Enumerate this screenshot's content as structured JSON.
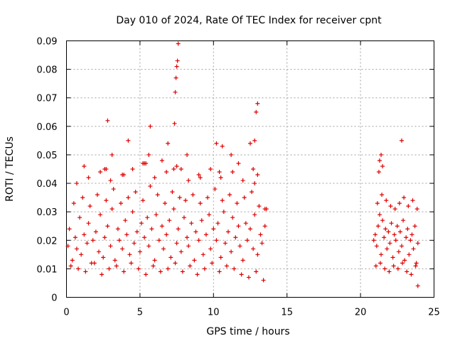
{
  "colors": {
    "series": "#e00000",
    "grid": "#a0a0a0",
    "axis": "#000000",
    "background": "#ffffff"
  },
  "chart_data": {
    "type": "scatter",
    "title": "Day 010 of 2024, Rate Of TEC Index for receiver cpnt",
    "xlabel": "GPS time / hours",
    "ylabel": "ROTI / TECUs",
    "xlim": [
      0,
      25
    ],
    "ylim": [
      0,
      0.09
    ],
    "xticks": [
      "0",
      "5",
      "10",
      "15",
      "20",
      "25"
    ],
    "yticks": [
      "0",
      "0.01",
      "0.02",
      "0.03",
      "0.04",
      "0.05",
      "0.06",
      "0.07",
      "0.08",
      "0.09"
    ],
    "grid": true,
    "marker": "+",
    "series": [
      {
        "name": "ROTI",
        "notes": "dense cloud of values approx 0.01–0.035 TECU/s from 0 to 13.7 h and from 20.8 to 24 h; data gap 13.7–20.8 h",
        "x": [
          0.1,
          0.2,
          0.4,
          0.6,
          0.7,
          0.9,
          1.0,
          1.2,
          1.4,
          1.5,
          1.7,
          1.8,
          2.0,
          2.2,
          2.3,
          2.5,
          2.6,
          2.8,
          3.0,
          3.1,
          3.3,
          3.5,
          3.6,
          3.8,
          4.0,
          4.1,
          4.3,
          4.5,
          4.6,
          4.8,
          5.0,
          5.1,
          5.3,
          5.5,
          5.6,
          5.8,
          6.0,
          6.1,
          6.3,
          6.5,
          6.6,
          6.8,
          7.0,
          7.1,
          7.3,
          7.5,
          7.6,
          7.8,
          8.0,
          8.2,
          8.3,
          8.5,
          8.7,
          8.8,
          9.0,
          9.2,
          9.3,
          9.5,
          9.7,
          9.8,
          10.0,
          10.2,
          10.3,
          10.5,
          10.7,
          10.8,
          11.0,
          11.2,
          11.3,
          11.5,
          11.7,
          11.8,
          12.0,
          12.2,
          12.3,
          12.5,
          12.7,
          12.8,
          13.0,
          13.2,
          13.3,
          13.5,
          0.3,
          0.8,
          1.3,
          1.9,
          2.4,
          2.9,
          3.4,
          3.9,
          4.4,
          4.9,
          5.4,
          5.9,
          6.4,
          6.9,
          7.4,
          7.9,
          8.4,
          8.9,
          9.4,
          9.9,
          10.4,
          10.9,
          11.4,
          11.9,
          12.4,
          12.9,
          13.4,
          0.5,
          1.1,
          1.6,
          2.1,
          2.7,
          3.2,
          3.7,
          4.2,
          4.7,
          5.2,
          5.7,
          6.2,
          6.7,
          7.2,
          7.7,
          8.1,
          8.6,
          9.1,
          9.6,
          10.1,
          10.6,
          11.1,
          11.6,
          12.1,
          12.6,
          13.1,
          13.6,
          0.7,
          1.5,
          2.3,
          3.0,
          3.8,
          4.5,
          5.3,
          6.0,
          6.8,
          7.5,
          8.3,
          9.0,
          9.8,
          10.5,
          11.3,
          12.0,
          12.8,
          13.5,
          1.2,
          2.6,
          3.9,
          5.2,
          6.5,
          7.8,
          9.1,
          10.4,
          11.7,
          13.0,
          2.7,
          2.8,
          3.1,
          4.2,
          5.4,
          5.6,
          5.7,
          6.9,
          7.3,
          7.35,
          7.4,
          7.45,
          7.5,
          7.55,
          7.6,
          8.2,
          10.2,
          10.6,
          11.2,
          12.5,
          12.7,
          12.8,
          12.9,
          13.0,
          20.9,
          21.0,
          21.1,
          21.2,
          21.3,
          21.4,
          21.5,
          21.6,
          21.7,
          21.8,
          21.9,
          22.0,
          22.1,
          22.2,
          22.3,
          22.4,
          22.5,
          22.6,
          22.7,
          22.8,
          22.9,
          23.0,
          23.1,
          23.2,
          23.3,
          23.4,
          23.5,
          23.6,
          23.7,
          23.8,
          23.9,
          21.05,
          21.35,
          21.65,
          21.95,
          22.25,
          22.55,
          22.85,
          23.15,
          23.45,
          23.75,
          21.15,
          21.45,
          21.75,
          22.05,
          22.35,
          22.65,
          22.95,
          23.25,
          23.55,
          23.85,
          21.25,
          21.3,
          21.4,
          21.5,
          22.8,
          23.9
        ],
        "y": [
          0.018,
          0.024,
          0.013,
          0.021,
          0.017,
          0.028,
          0.015,
          0.022,
          0.019,
          0.026,
          0.012,
          0.02,
          0.023,
          0.016,
          0.029,
          0.014,
          0.021,
          0.025,
          0.018,
          0.031,
          0.013,
          0.024,
          0.02,
          0.017,
          0.027,
          0.022,
          0.015,
          0.03,
          0.019,
          0.023,
          0.016,
          0.026,
          0.021,
          0.028,
          0.018,
          0.024,
          0.013,
          0.029,
          0.02,
          0.025,
          0.017,
          0.022,
          0.027,
          0.014,
          0.031,
          0.019,
          0.024,
          0.016,
          0.028,
          0.021,
          0.018,
          0.026,
          0.013,
          0.023,
          0.02,
          0.027,
          0.015,
          0.022,
          0.029,
          0.017,
          0.024,
          0.02,
          0.026,
          0.014,
          0.03,
          0.019,
          0.023,
          0.016,
          0.028,
          0.021,
          0.025,
          0.018,
          0.013,
          0.026,
          0.02,
          0.024,
          0.017,
          0.029,
          0.015,
          0.022,
          0.019,
          0.025,
          0.011,
          0.01,
          0.009,
          0.012,
          0.008,
          0.01,
          0.011,
          0.009,
          0.012,
          0.01,
          0.008,
          0.011,
          0.009,
          0.01,
          0.012,
          0.009,
          0.011,
          0.008,
          0.01,
          0.012,
          0.009,
          0.011,
          0.01,
          0.008,
          0.007,
          0.009,
          0.006,
          0.033,
          0.035,
          0.032,
          0.036,
          0.034,
          0.038,
          0.033,
          0.035,
          0.037,
          0.034,
          0.039,
          0.036,
          0.033,
          0.037,
          0.035,
          0.034,
          0.036,
          0.033,
          0.035,
          0.038,
          0.034,
          0.036,
          0.033,
          0.035,
          0.037,
          0.032,
          0.031,
          0.04,
          0.042,
          0.044,
          0.041,
          0.043,
          0.045,
          0.047,
          0.042,
          0.044,
          0.046,
          0.041,
          0.043,
          0.045,
          0.042,
          0.044,
          0.041,
          0.04,
          0.031,
          0.046,
          0.045,
          0.043,
          0.047,
          0.048,
          0.045,
          0.042,
          0.044,
          0.047,
          0.043,
          0.045,
          0.062,
          0.05,
          0.055,
          0.047,
          0.05,
          0.06,
          0.054,
          0.045,
          0.061,
          0.072,
          0.077,
          0.081,
          0.083,
          0.089,
          0.05,
          0.054,
          0.053,
          0.05,
          0.054,
          0.045,
          0.055,
          0.065,
          0.068,
          0.02,
          0.022,
          0.018,
          0.025,
          0.029,
          0.015,
          0.027,
          0.021,
          0.024,
          0.017,
          0.023,
          0.019,
          0.026,
          0.014,
          0.022,
          0.02,
          0.025,
          0.016,
          0.023,
          0.018,
          0.027,
          0.013,
          0.021,
          0.024,
          0.015,
          0.02,
          0.022,
          0.017,
          0.025,
          0.012,
          0.019,
          0.011,
          0.012,
          0.01,
          0.009,
          0.011,
          0.01,
          0.012,
          0.009,
          0.008,
          0.011,
          0.033,
          0.036,
          0.034,
          0.032,
          0.031,
          0.033,
          0.035,
          0.032,
          0.034,
          0.031,
          0.044,
          0.048,
          0.05,
          0.046,
          0.055,
          0.004
        ]
      }
    ]
  }
}
